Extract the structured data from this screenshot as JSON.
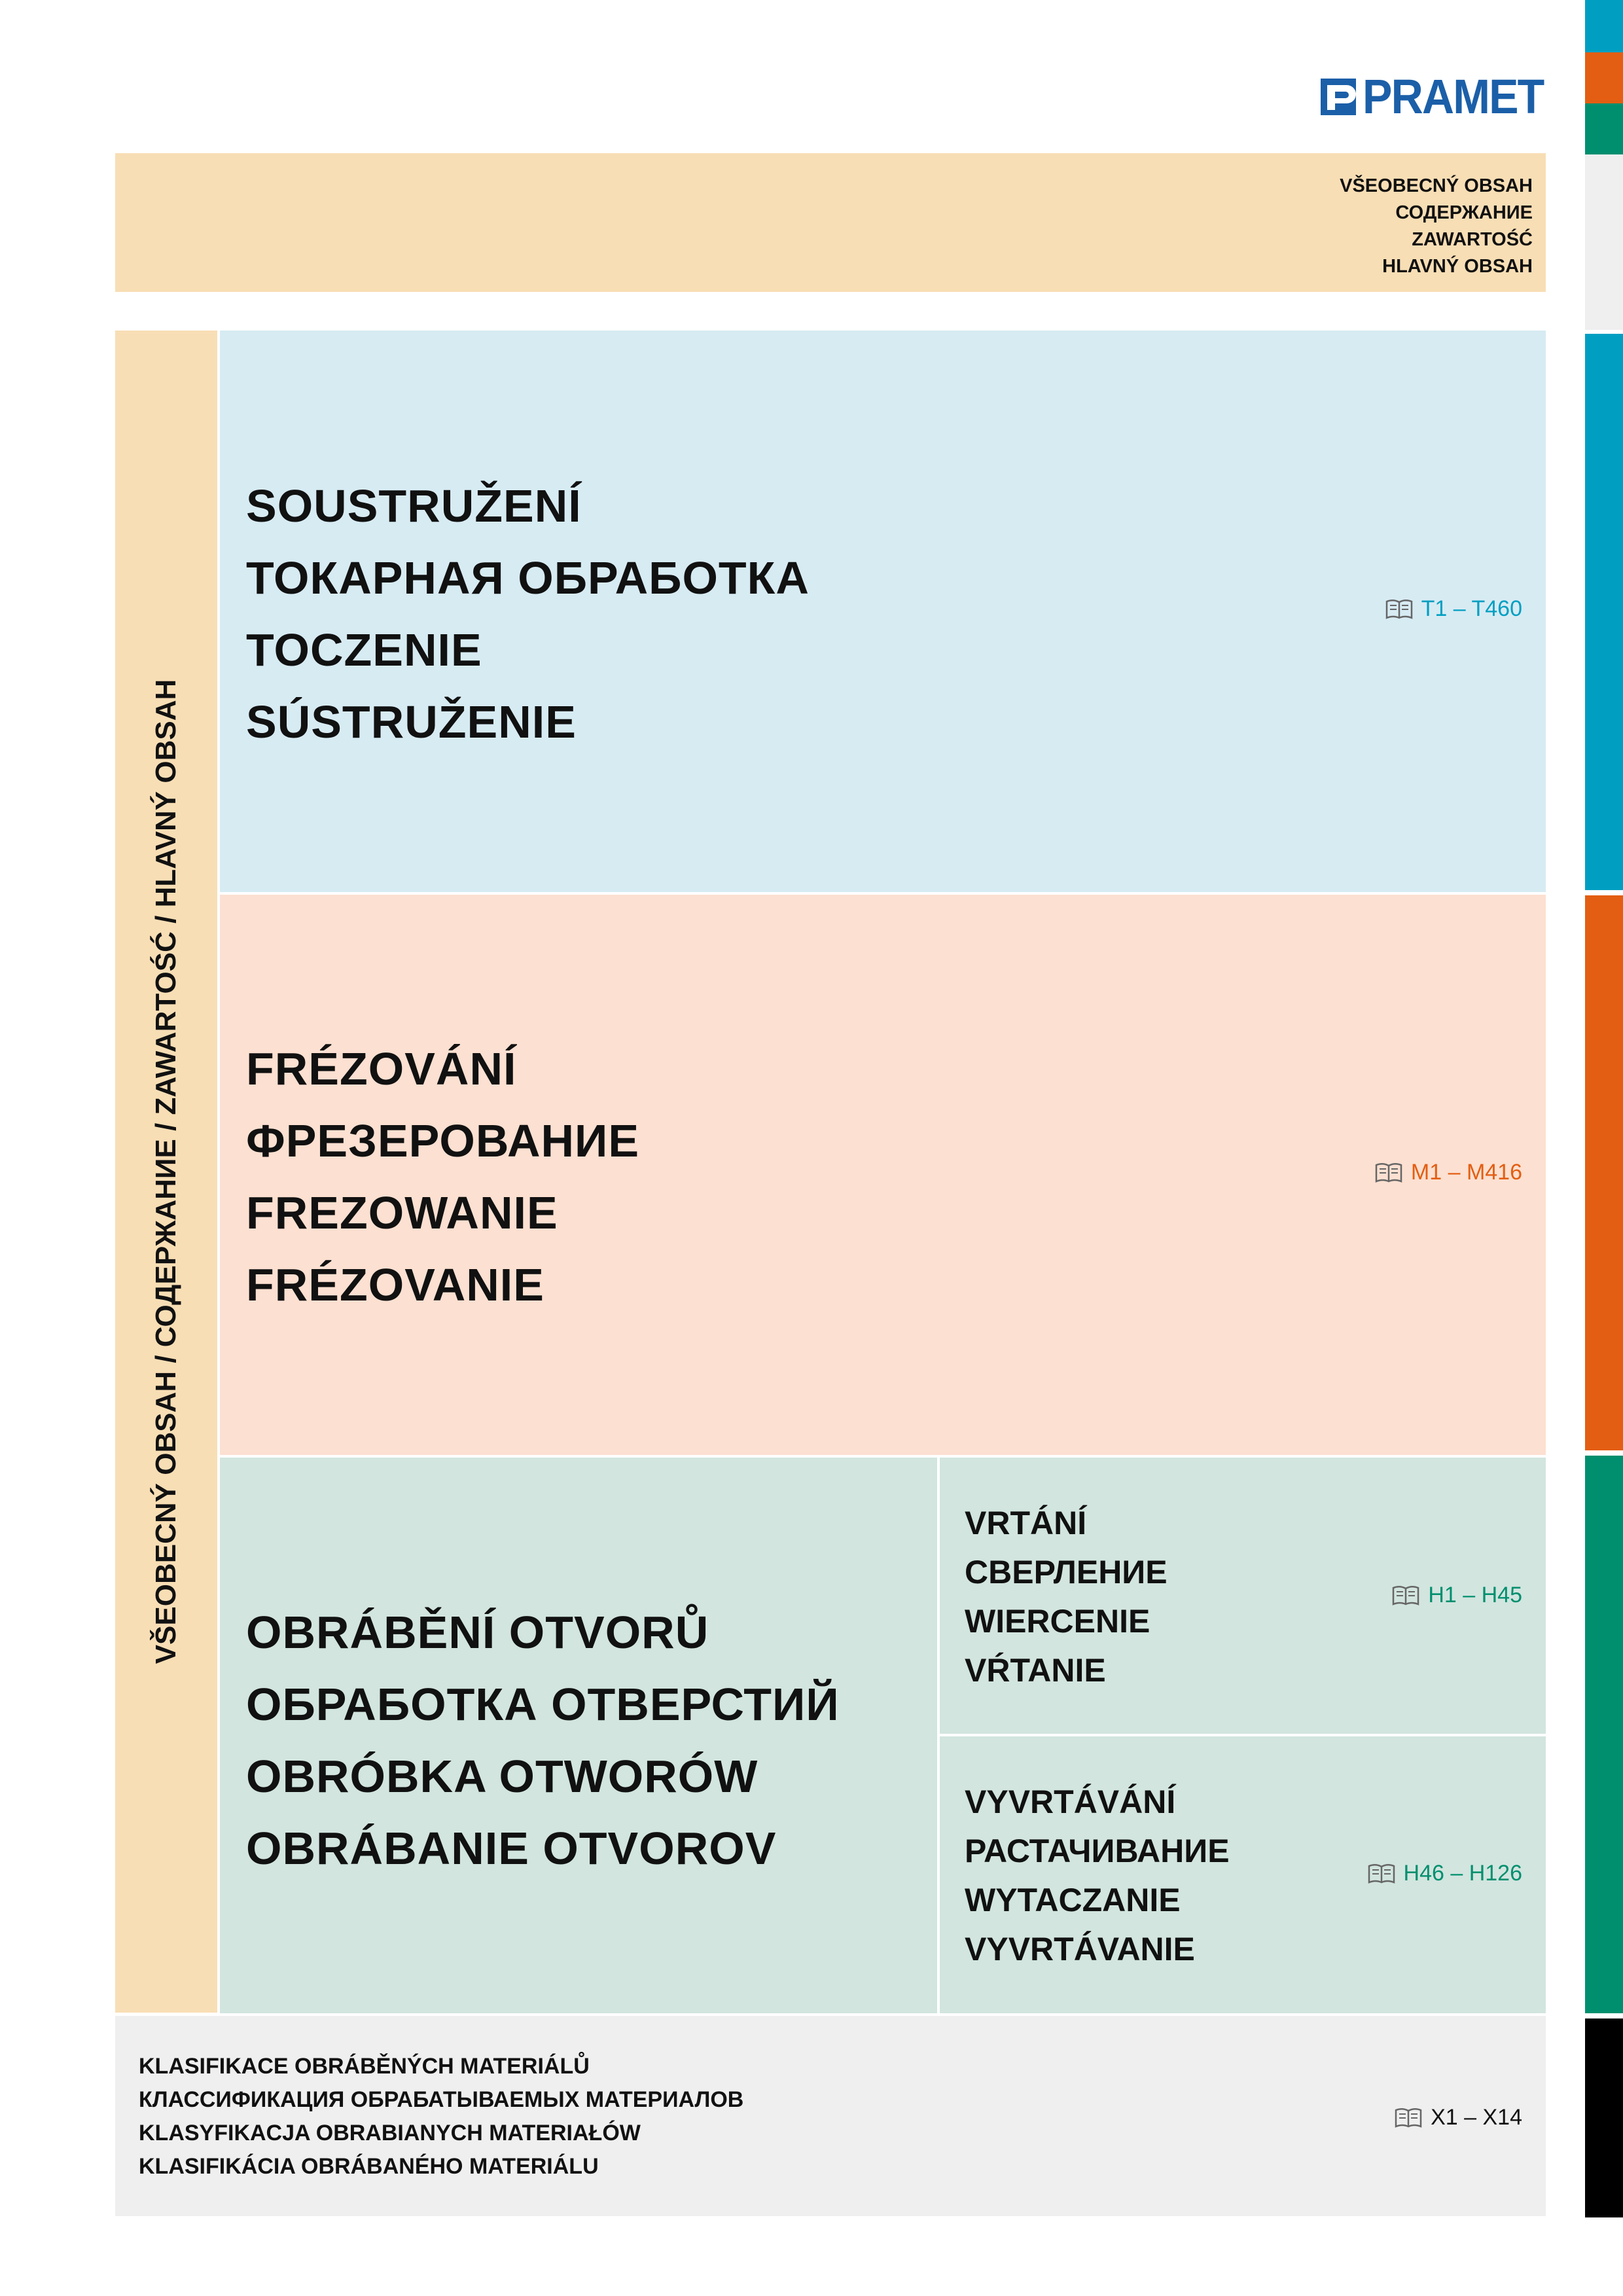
{
  "brand": {
    "name": "PRAMET",
    "color": "#1b5fa8"
  },
  "header": {
    "lines": [
      "VŠEOBECNÝ OBSAH",
      "СОДЕРЖАНИЕ",
      "ZAWARTOŚĆ",
      "HLAVNÝ OBSAH"
    ]
  },
  "sidebar": {
    "label": "VŠEOBECNÝ OBSAH / СОДЕРЖАНИЕ / ZAWARTOŚĆ / HLAVNÝ OBSAH"
  },
  "sections": {
    "turning": {
      "lines": [
        "SOUSTRUŽENÍ",
        "ТОКАРНАЯ ОБРАБОТКА",
        "TOCZENIE",
        "SÚSTRUŽENIE"
      ],
      "ref": "T1 – T460",
      "background": "#d7ebf3",
      "accent": "#009fc2"
    },
    "milling": {
      "lines": [
        "FRÉZOVÁNÍ",
        "ФРЕЗЕРОВАНИЕ",
        "FREZOWANIE",
        "FRÉZOVANIE"
      ],
      "ref": "M1 – M416",
      "background": "#fce0d1",
      "accent": "#e35e12"
    },
    "holemaking": {
      "lines": [
        "OBRÁBĚNÍ OTVORŮ",
        "ОБРАБОТКА ОТВЕРСТИЙ",
        "OBRÓBKA OTWORÓW",
        "OBRÁBANIE OTVOROV"
      ],
      "background": "#d2e5df",
      "accent": "#008f6e",
      "drilling": {
        "lines": [
          "VRTÁNÍ",
          "СВЕРЛЕНИЕ",
          "WIERCENIE",
          "VŔTANIE"
        ],
        "ref": "H1 – H45"
      },
      "boring": {
        "lines": [
          "VYVRTÁVÁNÍ",
          "РАСТАЧИВАНИЕ",
          "WYTACZANIE",
          "VYVRTÁVANIE"
        ],
        "ref": "H46 – H126"
      }
    }
  },
  "footer": {
    "lines": [
      "KLASIFIKACE OBRÁBĚNÝCH MATERIÁLŮ",
      "КЛАССИФИКАЦИЯ ОБРАБАТЫВАЕМЫХ МАТЕРИАЛОВ",
      "KLASYFIKACJA OBRABIANYCH MATERIAŁÓW",
      "KLASIFIKÁCIA OBRÁBANÉHO MATERIÁLU"
    ],
    "ref": "X1 – X14",
    "background": "#efefef"
  },
  "edge_tabs": [
    "#009fc2",
    "#e35e12",
    "#008f6e",
    "#000000"
  ]
}
